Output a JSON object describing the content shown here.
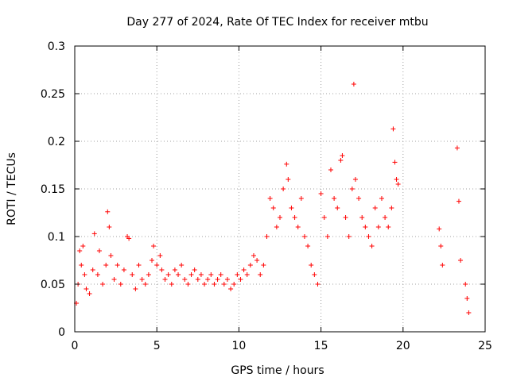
{
  "chart_data": {
    "type": "scatter",
    "title": "Day 277 of 2024, Rate Of TEC Index for receiver mtbu",
    "xlabel": "GPS time / hours",
    "ylabel": "ROTI / TECUs",
    "xlim": [
      0,
      25
    ],
    "ylim": [
      0,
      0.3
    ],
    "xticks": [
      0,
      5,
      10,
      15,
      20,
      25
    ],
    "xtick_labels": [
      "0",
      "5",
      "10",
      "15",
      "20",
      "25"
    ],
    "yticks": [
      0,
      0.05,
      0.1,
      0.15,
      0.2,
      0.25,
      0.3
    ],
    "ytick_labels": [
      "0",
      "0.05",
      "0.1",
      "0.15",
      "0.2",
      "0.25",
      "0.3"
    ],
    "grid": true,
    "marker": "plus",
    "color": "#ff0000",
    "series": [
      {
        "name": "ROTI",
        "points": [
          [
            0.1,
            0.03
          ],
          [
            0.2,
            0.05
          ],
          [
            0.3,
            0.085
          ],
          [
            0.4,
            0.07
          ],
          [
            0.5,
            0.09
          ],
          [
            0.6,
            0.06
          ],
          [
            0.7,
            0.045
          ],
          [
            0.9,
            0.04
          ],
          [
            1.1,
            0.065
          ],
          [
            1.2,
            0.103
          ],
          [
            1.4,
            0.06
          ],
          [
            1.5,
            0.085
          ],
          [
            1.7,
            0.05
          ],
          [
            1.9,
            0.07
          ],
          [
            2.0,
            0.126
          ],
          [
            2.1,
            0.11
          ],
          [
            2.2,
            0.08
          ],
          [
            2.4,
            0.055
          ],
          [
            2.6,
            0.07
          ],
          [
            2.8,
            0.05
          ],
          [
            3.0,
            0.065
          ],
          [
            3.2,
            0.1
          ],
          [
            3.3,
            0.098
          ],
          [
            3.5,
            0.06
          ],
          [
            3.7,
            0.045
          ],
          [
            3.9,
            0.07
          ],
          [
            4.1,
            0.055
          ],
          [
            4.3,
            0.05
          ],
          [
            4.5,
            0.06
          ],
          [
            4.7,
            0.075
          ],
          [
            4.8,
            0.09
          ],
          [
            5.0,
            0.07
          ],
          [
            5.2,
            0.08
          ],
          [
            5.3,
            0.065
          ],
          [
            5.5,
            0.055
          ],
          [
            5.7,
            0.06
          ],
          [
            5.9,
            0.05
          ],
          [
            6.1,
            0.065
          ],
          [
            6.3,
            0.06
          ],
          [
            6.5,
            0.07
          ],
          [
            6.7,
            0.055
          ],
          [
            6.9,
            0.05
          ],
          [
            7.1,
            0.06
          ],
          [
            7.3,
            0.065
          ],
          [
            7.5,
            0.055
          ],
          [
            7.7,
            0.06
          ],
          [
            7.9,
            0.05
          ],
          [
            8.1,
            0.055
          ],
          [
            8.3,
            0.06
          ],
          [
            8.5,
            0.05
          ],
          [
            8.7,
            0.055
          ],
          [
            8.9,
            0.06
          ],
          [
            9.1,
            0.05
          ],
          [
            9.3,
            0.055
          ],
          [
            9.5,
            0.045
          ],
          [
            9.7,
            0.05
          ],
          [
            9.9,
            0.06
          ],
          [
            10.1,
            0.055
          ],
          [
            10.3,
            0.065
          ],
          [
            10.5,
            0.06
          ],
          [
            10.7,
            0.07
          ],
          [
            10.9,
            0.08
          ],
          [
            11.1,
            0.075
          ],
          [
            11.3,
            0.06
          ],
          [
            11.5,
            0.07
          ],
          [
            11.7,
            0.1
          ],
          [
            11.9,
            0.14
          ],
          [
            12.1,
            0.13
          ],
          [
            12.3,
            0.11
          ],
          [
            12.5,
            0.12
          ],
          [
            12.7,
            0.15
          ],
          [
            12.9,
            0.176
          ],
          [
            13.0,
            0.16
          ],
          [
            13.2,
            0.13
          ],
          [
            13.4,
            0.12
          ],
          [
            13.6,
            0.11
          ],
          [
            13.8,
            0.14
          ],
          [
            14.0,
            0.1
          ],
          [
            14.2,
            0.09
          ],
          [
            14.4,
            0.07
          ],
          [
            14.6,
            0.06
          ],
          [
            14.8,
            0.05
          ],
          [
            15.0,
            0.145
          ],
          [
            15.2,
            0.12
          ],
          [
            15.4,
            0.1
          ],
          [
            15.6,
            0.17
          ],
          [
            15.8,
            0.14
          ],
          [
            16.0,
            0.13
          ],
          [
            16.2,
            0.18
          ],
          [
            16.3,
            0.185
          ],
          [
            16.5,
            0.12
          ],
          [
            16.7,
            0.1
          ],
          [
            16.9,
            0.15
          ],
          [
            17.0,
            0.26
          ],
          [
            17.1,
            0.16
          ],
          [
            17.3,
            0.14
          ],
          [
            17.5,
            0.12
          ],
          [
            17.7,
            0.11
          ],
          [
            17.9,
            0.1
          ],
          [
            18.1,
            0.09
          ],
          [
            18.3,
            0.13
          ],
          [
            18.5,
            0.11
          ],
          [
            18.7,
            0.14
          ],
          [
            18.9,
            0.12
          ],
          [
            19.1,
            0.11
          ],
          [
            19.3,
            0.13
          ],
          [
            19.4,
            0.213
          ],
          [
            19.5,
            0.178
          ],
          [
            19.6,
            0.16
          ],
          [
            19.7,
            0.155
          ],
          [
            22.2,
            0.108
          ],
          [
            22.3,
            0.09
          ],
          [
            22.4,
            0.07
          ],
          [
            23.3,
            0.193
          ],
          [
            23.4,
            0.137
          ],
          [
            23.5,
            0.075
          ],
          [
            23.8,
            0.05
          ],
          [
            23.9,
            0.035
          ],
          [
            24.0,
            0.02
          ]
        ]
      }
    ]
  }
}
